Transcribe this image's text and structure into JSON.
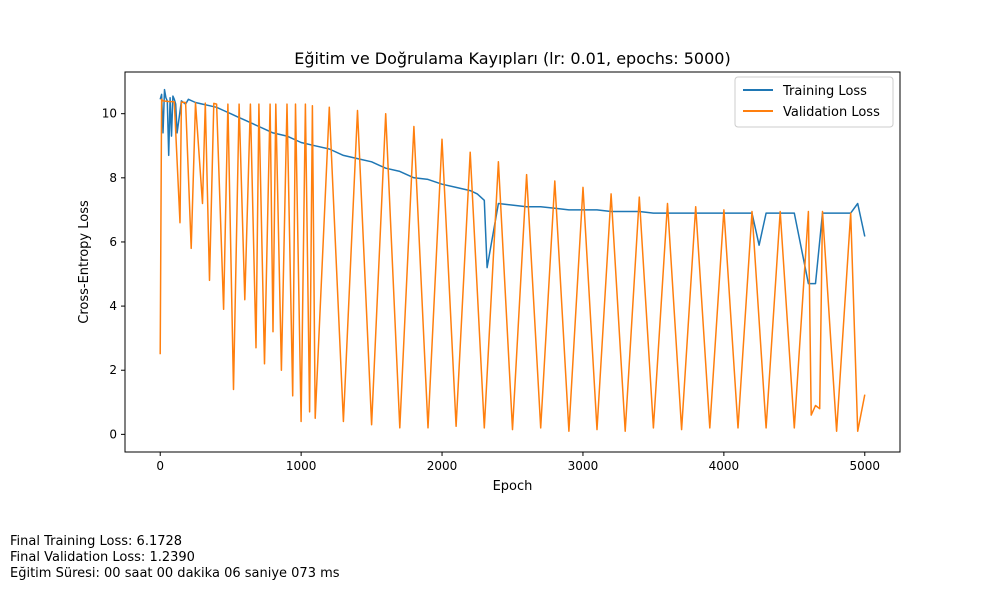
{
  "chart_data": {
    "type": "line",
    "title": "Eğitim ve Doğrulama Kayıpları (lr: 0.01, epochs: 5000)",
    "xlabel": "Epoch",
    "ylabel": "Cross-Entropy Loss",
    "xlim": [
      -250,
      5250
    ],
    "ylim": [
      -0.55,
      11.3
    ],
    "xticks": [
      0,
      1000,
      2000,
      3000,
      4000,
      5000
    ],
    "yticks": [
      0,
      2,
      4,
      6,
      8,
      10
    ],
    "grid": false,
    "legend_position": "top-right",
    "series": [
      {
        "name": "Training Loss",
        "color": "#1f77b4",
        "x": [
          0,
          10,
          20,
          30,
          40,
          50,
          60,
          70,
          80,
          90,
          100,
          110,
          120,
          150,
          180,
          200,
          250,
          300,
          350,
          400,
          450,
          500,
          550,
          600,
          700,
          800,
          900,
          1000,
          1100,
          1200,
          1300,
          1400,
          1500,
          1600,
          1700,
          1800,
          1900,
          2000,
          2100,
          2200,
          2250,
          2300,
          2320,
          2400,
          2500,
          2600,
          2700,
          2800,
          2900,
          3000,
          3100,
          3200,
          3300,
          3400,
          3500,
          3600,
          3700,
          3800,
          3900,
          4000,
          4100,
          4200,
          4250,
          4300,
          4400,
          4500,
          4600,
          4650,
          4700,
          4800,
          4900,
          4950,
          5000
        ],
        "y": [
          10.45,
          10.6,
          9.4,
          10.75,
          10.5,
          10.4,
          8.7,
          10.5,
          9.3,
          10.55,
          10.45,
          10.3,
          9.4,
          10.4,
          10.3,
          10.45,
          10.35,
          10.3,
          10.25,
          10.2,
          10.1,
          10.0,
          9.9,
          9.8,
          9.6,
          9.4,
          9.3,
          9.1,
          9.0,
          8.9,
          8.7,
          8.6,
          8.5,
          8.3,
          8.2,
          8.0,
          7.95,
          7.8,
          7.7,
          7.6,
          7.5,
          7.3,
          5.2,
          7.2,
          7.15,
          7.1,
          7.1,
          7.05,
          7.0,
          7.0,
          7.0,
          6.95,
          6.95,
          6.95,
          6.9,
          6.9,
          6.9,
          6.9,
          6.9,
          6.9,
          6.9,
          6.9,
          5.9,
          6.9,
          6.9,
          6.9,
          4.7,
          4.7,
          6.9,
          6.9,
          6.9,
          7.2,
          6.17
        ]
      },
      {
        "name": "Validation Loss",
        "color": "#ff7f0e",
        "x": [
          0,
          10,
          20,
          60,
          100,
          140,
          150,
          180,
          220,
          250,
          300,
          320,
          350,
          380,
          400,
          450,
          480,
          520,
          560,
          600,
          640,
          680,
          700,
          740,
          780,
          800,
          820,
          860,
          900,
          940,
          960,
          1000,
          1030,
          1060,
          1080,
          1100,
          1200,
          1300,
          1400,
          1500,
          1600,
          1700,
          1800,
          1900,
          2000,
          2100,
          2200,
          2300,
          2400,
          2500,
          2600,
          2700,
          2800,
          2900,
          3000,
          3100,
          3200,
          3300,
          3400,
          3500,
          3600,
          3700,
          3800,
          3900,
          4000,
          4100,
          4200,
          4300,
          4400,
          4500,
          4600,
          4620,
          4650,
          4680,
          4700,
          4800,
          4900,
          4950,
          5000
        ],
        "y": [
          2.5,
          10.45,
          10.4,
          10.38,
          10.37,
          6.6,
          10.36,
          10.35,
          5.8,
          10.34,
          7.2,
          10.33,
          4.8,
          10.32,
          10.3,
          3.9,
          10.3,
          1.4,
          10.3,
          4.2,
          10.3,
          2.7,
          10.3,
          2.2,
          10.3,
          3.2,
          10.3,
          2.0,
          10.3,
          1.2,
          10.3,
          0.4,
          10.3,
          0.7,
          10.25,
          0.5,
          10.2,
          0.4,
          10.1,
          0.3,
          10.0,
          0.2,
          9.6,
          0.2,
          9.2,
          0.25,
          8.8,
          0.2,
          8.5,
          0.15,
          8.1,
          0.2,
          7.9,
          0.1,
          7.7,
          0.15,
          7.5,
          0.1,
          7.4,
          0.2,
          7.2,
          0.15,
          7.1,
          0.2,
          7.0,
          0.2,
          6.95,
          0.2,
          6.95,
          0.2,
          6.95,
          0.6,
          0.9,
          0.8,
          6.95,
          0.1,
          6.9,
          0.1,
          1.24
        ]
      }
    ]
  },
  "footnotes": {
    "final_training_loss": "Final Training Loss: 6.1728",
    "final_validation_loss": "Final Validation Loss: 1.2390",
    "training_time": "Eğitim Süresi: 00 saat 00 dakika 06 saniye 073 ms"
  }
}
